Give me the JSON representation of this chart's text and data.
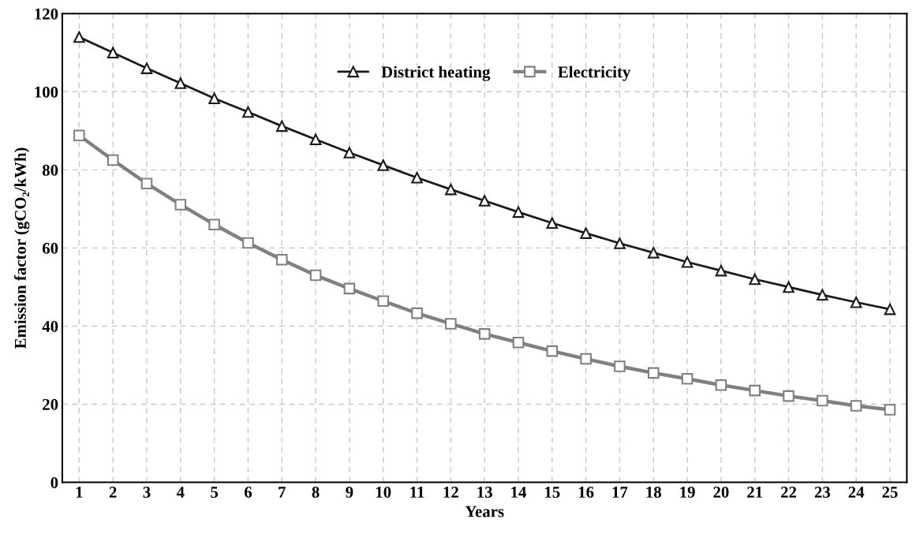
{
  "chart_data": {
    "type": "line",
    "xlabel": "Years",
    "ylabel": "Emission factor (gCO₂/kWh)",
    "categories": [
      "1",
      "2",
      "3",
      "4",
      "5",
      "6",
      "7",
      "8",
      "9",
      "10",
      "11",
      "12",
      "13",
      "14",
      "15",
      "16",
      "17",
      "18",
      "19",
      "20",
      "21",
      "22",
      "23",
      "24",
      "25"
    ],
    "series": [
      {
        "name": "District heating",
        "color": "#1a1a1a",
        "marker": "triangle",
        "values": [
          114,
          110,
          106,
          102.2,
          98.3,
          94.8,
          91.2,
          87.8,
          84.4,
          81.2,
          78,
          75,
          72.1,
          69.2,
          66.4,
          63.8,
          61.2,
          58.8,
          56.4,
          54.2,
          52,
          50,
          48,
          46.1,
          44.3
        ]
      },
      {
        "name": "Electricity",
        "color": "#808080",
        "marker": "square",
        "values": [
          88.8,
          82.5,
          76.5,
          71.1,
          66,
          61.3,
          57,
          53,
          49.6,
          46.4,
          43.3,
          40.6,
          38,
          35.8,
          33.6,
          31.6,
          29.7,
          28,
          26.5,
          24.9,
          23.5,
          22.1,
          20.9,
          19.6,
          18.6
        ]
      }
    ],
    "ylim": [
      0,
      120
    ],
    "yticks": [
      0,
      20,
      40,
      60,
      80,
      100,
      120
    ],
    "grid": true,
    "legend": "top",
    "line_style": "solid"
  }
}
